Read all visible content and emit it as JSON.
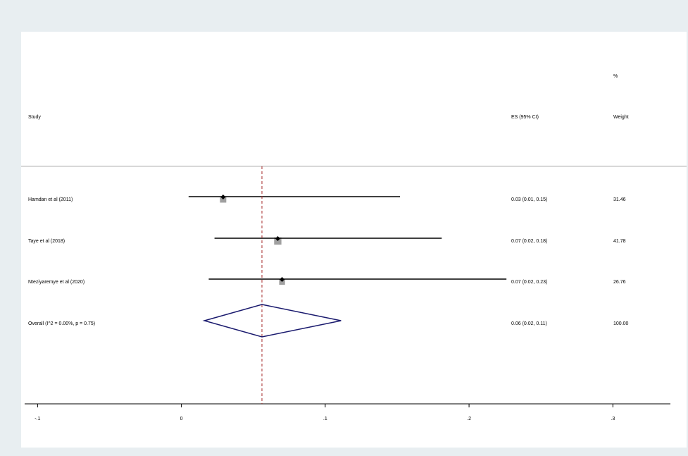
{
  "chart_data": {
    "type": "forest",
    "headers": {
      "study": "Study",
      "es": "ES (95% CI)",
      "weight_pct": "%",
      "weight": "Weight"
    },
    "studies": [
      {
        "name": "Hamdan et al (2011)",
        "estimate": 0.029,
        "ci": [
          0.005,
          0.152
        ],
        "es_label": "0.03 (0.01, 0.15)",
        "weight": 31.46
      },
      {
        "name": "Taye et al (2018)",
        "estimate": 0.067,
        "ci": [
          0.023,
          0.181
        ],
        "es_label": "0.07 (0.02, 0.18)",
        "weight": 41.78
      },
      {
        "name": "Nteziyaremye et al (2020)",
        "estimate": 0.07,
        "ci": [
          0.019,
          0.226
        ],
        "es_label": "0.07 (0.02, 0.23)",
        "weight": 26.76
      }
    ],
    "overall": {
      "label": "Overall  (I^2 = 0.00%, p = 0.75)",
      "estimate": 0.056,
      "ci": [
        0.016,
        0.111
      ],
      "es_label": "0.06 (0.02, 0.11)",
      "weight": {
        "value": 100,
        "label": "100.00"
      }
    },
    "xlim": [
      -0.109,
      0.34
    ],
    "xticks": [
      {
        "value": -0.1,
        "label": "-.1"
      },
      0,
      {
        "value": 0.1,
        "label": ".1"
      },
      {
        "value": 0.2,
        "label": ".2"
      },
      {
        "value": 0.3,
        "label": ".3"
      }
    ],
    "colors": {
      "ci": "#000000",
      "box": "#a0a0a0",
      "point": "#000000",
      "diamond": "#1a1a6e",
      "reference": "#a52a2a"
    }
  }
}
